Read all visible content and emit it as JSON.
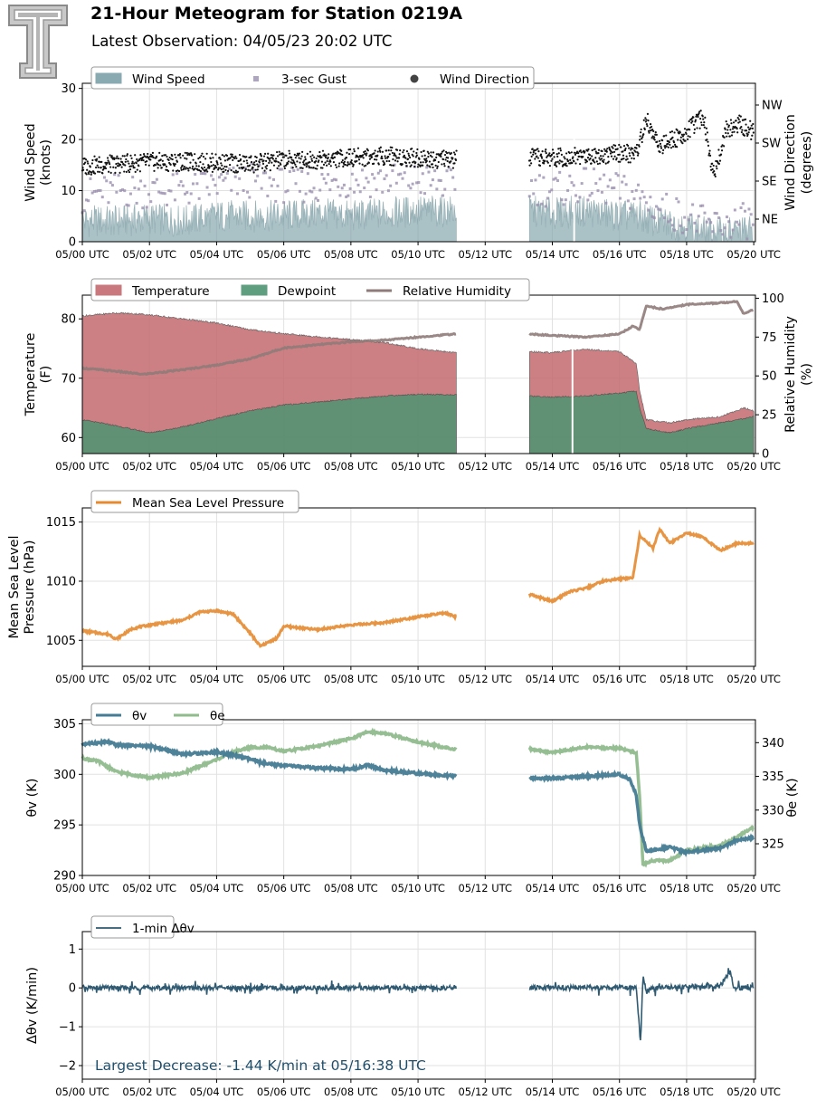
{
  "header": {
    "title": "21-Hour Meteogram for Station 0219A",
    "subtitle": "Latest Observation: 04/05/23 20:02 UTC",
    "logo_icon": "university-t-logo-icon"
  },
  "colors": {
    "wind_speed": "#7da1a9",
    "gust": "#9a8fae",
    "direction": "#111111",
    "temperature": "#c46b6f",
    "dewpoint": "#4e9472",
    "rh": "#8f7b79",
    "pressure": "#e58a2f",
    "theta_v": "#457b94",
    "theta_e": "#8fbb8d",
    "dtheta": "#2f5a71"
  },
  "x_axis": {
    "ticks": [
      "05/00 UTC",
      "05/02 UTC",
      "05/04 UTC",
      "05/06 UTC",
      "05/08 UTC",
      "05/10 UTC",
      "05/12 UTC",
      "05/14 UTC",
      "05/16 UTC",
      "05/18 UTC",
      "05/20 UTC"
    ],
    "range_hours": [
      0,
      20.05
    ]
  },
  "chart_data": [
    {
      "type": "area",
      "ylabel": "Wind Speed\n(knots)",
      "ylabel_right": "Wind Direction\n(degrees)",
      "ylim": [
        0,
        31
      ],
      "yticks": [
        "0",
        "10",
        "20",
        "30"
      ],
      "right_ticks": [
        "NE",
        "SE",
        "SW",
        "NW"
      ],
      "right_ticks_deg": [
        45,
        135,
        225,
        315
      ],
      "legend": [
        "Wind Speed",
        "3-sec Gust",
        "Wind Direction"
      ],
      "legend_placement": "top-left",
      "data_gap_hours": [
        11.15,
        13.3
      ],
      "series": [
        {
          "name": "Wind Speed",
          "x": [
            0,
            1,
            2,
            3,
            4,
            5,
            6,
            7,
            8,
            9,
            10,
            11.1,
            13.3,
            14,
            15,
            16,
            16.6,
            17,
            18,
            18.7,
            19.5,
            20
          ],
          "values": [
            4,
            4,
            4.5,
            4,
            5,
            5,
            5,
            5.5,
            5,
            5.5,
            6,
            6,
            6,
            5.5,
            6,
            5,
            5,
            4,
            3,
            1.5,
            2,
            2
          ]
        },
        {
          "name": "3-sec Gust",
          "x": [
            0,
            1,
            2,
            3,
            4,
            5,
            6,
            7,
            8,
            9,
            10,
            11.1,
            13.3,
            14,
            15,
            16,
            16.6,
            17,
            18,
            18.7,
            19.5,
            20
          ],
          "values": [
            9,
            10,
            10,
            10,
            11,
            12,
            11,
            11,
            12,
            12,
            12,
            11,
            11,
            10,
            11,
            10,
            9,
            7,
            5,
            3,
            4,
            4
          ]
        },
        {
          "name": "Wind Direction",
          "x": [
            0,
            1,
            2,
            3,
            4,
            5,
            6,
            7,
            8,
            9,
            10,
            11.1,
            13.3,
            14,
            15,
            16,
            16.5,
            16.8,
            17.2,
            18,
            18.5,
            18.8,
            19.2,
            19.6,
            20
          ],
          "values": [
            170,
            175,
            180,
            180,
            178,
            175,
            185,
            185,
            190,
            195,
            190,
            185,
            190,
            190,
            195,
            200,
            200,
            280,
            215,
            250,
            290,
            150,
            260,
            270,
            250
          ]
        }
      ]
    },
    {
      "type": "area",
      "ylabel": "Temperature\n(F)",
      "ylabel_right": "Relative Humidity\n(%)",
      "ylim": [
        57.3,
        84
      ],
      "yticks": [
        "60",
        "70",
        "80"
      ],
      "right_ylim": [
        0,
        102
      ],
      "right_ticks": [
        "0",
        "25",
        "50",
        "75",
        "100"
      ],
      "legend": [
        "Temperature",
        "Dewpoint",
        "Relative Humidity"
      ],
      "legend_placement": "top-left",
      "data_gap_hours": [
        11.15,
        13.3
      ],
      "series": [
        {
          "name": "Temperature",
          "x": [
            0,
            1,
            1.8,
            3,
            4,
            5,
            6,
            7,
            8,
            9,
            10,
            11.1,
            13.3,
            14,
            14.7,
            15.2,
            16,
            16.5,
            16.6,
            16.8,
            17.5,
            18,
            19,
            19.7,
            20
          ],
          "values": [
            80.5,
            81,
            80.8,
            80,
            79.3,
            78.2,
            77.5,
            77,
            76.5,
            76,
            75,
            74.3,
            74.5,
            74.3,
            74.8,
            74.8,
            74.5,
            72.5,
            68,
            63,
            62.5,
            63,
            63.5,
            65,
            64.5
          ]
        },
        {
          "name": "Dewpoint",
          "x": [
            0,
            1,
            2,
            3,
            4,
            5,
            6,
            7,
            8,
            9,
            10,
            11.1,
            13.3,
            14,
            15,
            16,
            16.5,
            16.6,
            16.8,
            17.5,
            18,
            19,
            20
          ],
          "values": [
            63,
            62,
            60.8,
            61.8,
            63.2,
            64.5,
            65.5,
            66,
            66.5,
            67,
            67.3,
            67.2,
            67,
            66.8,
            67,
            67.5,
            67.8,
            65,
            61.5,
            60.8,
            61.5,
            62.5,
            63.5
          ]
        },
        {
          "name": "Relative Humidity",
          "x": [
            0,
            1,
            1.8,
            3,
            4,
            5,
            6,
            7,
            8,
            9,
            10,
            11.1,
            13.3,
            14,
            15,
            16,
            16.4,
            16.6,
            16.8,
            17.3,
            18,
            19,
            19.5,
            19.7,
            20
          ],
          "values": [
            55,
            53,
            51,
            54,
            57,
            61,
            68,
            70,
            72,
            73,
            75,
            77,
            77,
            76,
            75,
            77,
            82,
            80,
            95,
            93,
            96,
            97,
            98,
            90,
            93
          ]
        }
      ]
    },
    {
      "type": "line",
      "ylabel": "Mean Sea Level\nPressure (hPa)",
      "ylim": [
        1002.8,
        1016.2
      ],
      "yticks": [
        "1005",
        "1010",
        "1015"
      ],
      "legend": [
        "Mean Sea Level Pressure"
      ],
      "legend_placement": "top-left",
      "data_gap_hours": [
        11.15,
        13.3
      ],
      "series": [
        {
          "name": "Mean Sea Level Pressure",
          "x": [
            0,
            0.8,
            1,
            1.5,
            2,
            3,
            3.5,
            4,
            4.5,
            5,
            5.3,
            5.8,
            6,
            7,
            8,
            9,
            10,
            10.8,
            11.1,
            13.3,
            14,
            14.5,
            15,
            15.5,
            16,
            16.4,
            16.6,
            17,
            17.2,
            17.5,
            18,
            18.5,
            19,
            19.5,
            20
          ],
          "values": [
            1005.8,
            1005.5,
            1005.1,
            1006,
            1006.3,
            1006.7,
            1007.4,
            1007.5,
            1007.2,
            1005.6,
            1004.5,
            1005.2,
            1006.2,
            1005.9,
            1006.3,
            1006.5,
            1007,
            1007.3,
            1007,
            1008.9,
            1008.3,
            1009.1,
            1009.4,
            1010,
            1010.2,
            1010.3,
            1013.9,
            1012.8,
            1014.4,
            1013.2,
            1014.1,
            1013.7,
            1012.6,
            1013.2,
            1013.2
          ]
        }
      ]
    },
    {
      "type": "line",
      "ylabel": "θv (K)",
      "ylabel_right": "θe (K)",
      "ylim": [
        290,
        305.4
      ],
      "yticks": [
        "290",
        "295",
        "300",
        "305"
      ],
      "right_ylim": [
        320.3,
        343.4
      ],
      "right_ticks": [
        "325",
        "330",
        "335",
        "340"
      ],
      "legend": [
        "θv",
        "θe"
      ],
      "legend_placement": "top-left",
      "data_gap_hours": [
        11.15,
        13.3
      ],
      "series": [
        {
          "name": "θv",
          "x": [
            0,
            0.8,
            1,
            2,
            3,
            4,
            4.5,
            5,
            5.5,
            6,
            7,
            8,
            8.5,
            9,
            10,
            11.1,
            13.3,
            14,
            15,
            16,
            16.3,
            16.5,
            16.6,
            16.8,
            17.5,
            18,
            19,
            19.5,
            20
          ],
          "values": [
            303,
            303.2,
            302.9,
            302.8,
            302,
            302.2,
            301.9,
            301.5,
            301,
            300.9,
            300.6,
            300.5,
            300.9,
            300.4,
            300.1,
            299.8,
            299.6,
            299.6,
            299.8,
            300,
            299.5,
            298,
            295,
            292.4,
            292.8,
            292.3,
            292.7,
            293.5,
            293.7
          ]
        },
        {
          "name": "θe",
          "x": [
            0,
            0.5,
            1,
            2,
            3,
            4,
            4.5,
            5,
            5.5,
            6,
            7,
            8,
            8.5,
            9,
            10,
            11.1,
            13.3,
            14,
            15,
            16,
            16.5,
            16.6,
            16.7,
            17,
            17.5,
            18,
            19,
            19.5,
            20
          ],
          "values": [
            337.7,
            337.2,
            335.7,
            334.8,
            335.5,
            337.5,
            338.6,
            339.3,
            339.3,
            338.7,
            339.5,
            340.6,
            341.6,
            341.4,
            340.1,
            339,
            339,
            338.6,
            339.3,
            339.2,
            338.5,
            332,
            322,
            322.5,
            322.5,
            324,
            324.7,
            326,
            327.5
          ]
        }
      ]
    },
    {
      "type": "line",
      "ylabel": "Δθv (K/min)",
      "ylim": [
        -2.35,
        1.45
      ],
      "yticks": [
        "−2",
        "−1",
        "0",
        "1"
      ],
      "legend": [
        "1-min Δθv"
      ],
      "legend_placement": "top-left",
      "data_gap_hours": [
        11.15,
        13.3
      ],
      "annotation": "Largest Decrease: -1.44 K/min at 05/16:38 UTC",
      "series": [
        {
          "name": "1-min Δθv",
          "x": [
            0,
            11.1,
            13.3,
            16.5,
            16.63,
            16.7,
            16.8,
            17,
            19,
            19.3,
            19.4,
            20
          ],
          "values": [
            0,
            0,
            0,
            0,
            -1.44,
            0.3,
            -0.1,
            0,
            0.05,
            0.42,
            0,
            0
          ]
        }
      ]
    }
  ]
}
